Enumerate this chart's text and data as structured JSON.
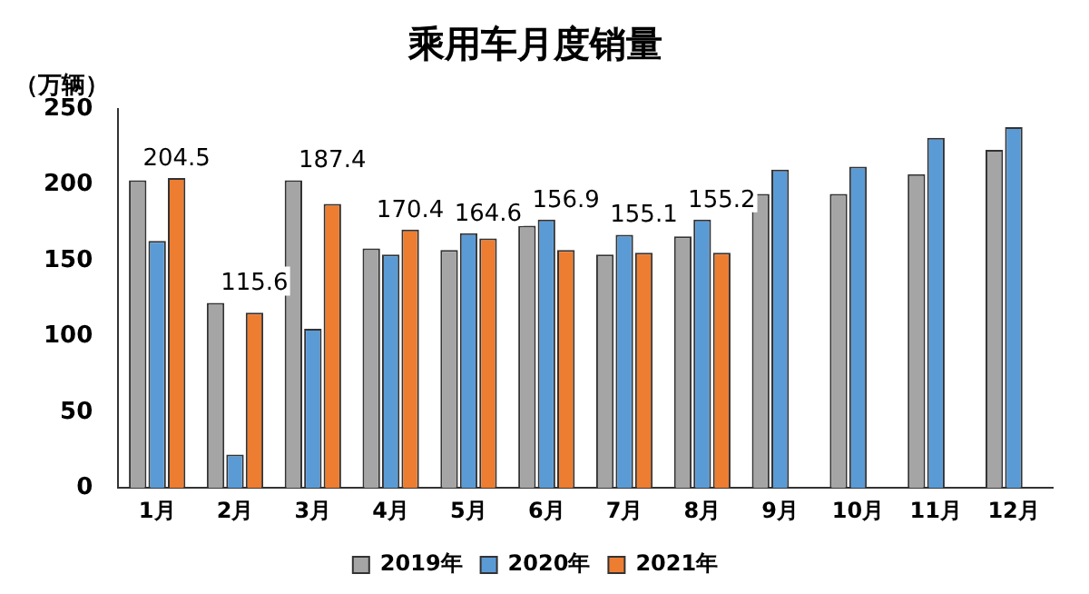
{
  "chart_data": {
    "type": "bar",
    "title": "乘用车月度销量",
    "ylabel": "（万辆）",
    "categories": [
      "1月",
      "2月",
      "3月",
      "4月",
      "5月",
      "6月",
      "7月",
      "8月",
      "9月",
      "10月",
      "11月",
      "12月"
    ],
    "series": [
      {
        "name": "2019年",
        "color": "#a5a5a5",
        "values": [
          203,
          122,
          203,
          158,
          157,
          173,
          154,
          166,
          194,
          194,
          207,
          223
        ]
      },
      {
        "name": "2020年",
        "color": "#5b9bd5",
        "values": [
          163,
          22,
          105,
          154,
          168,
          177,
          167,
          177,
          210,
          212,
          231,
          238
        ]
      },
      {
        "name": "2021年",
        "color": "#ed7d31",
        "values": [
          204.5,
          115.6,
          187.4,
          170.4,
          164.6,
          156.9,
          155.1,
          155.2,
          null,
          null,
          null,
          null
        ],
        "value_labels": [
          "204.5",
          "115.6",
          "187.4",
          "170.4",
          "164.6",
          "156.9",
          "155.1",
          "155.2",
          null,
          null,
          null,
          null
        ]
      }
    ],
    "ylim": [
      0,
      250
    ],
    "yticks": [
      0,
      50,
      100,
      150,
      200,
      250
    ],
    "grid": false,
    "legend": "bottom"
  }
}
